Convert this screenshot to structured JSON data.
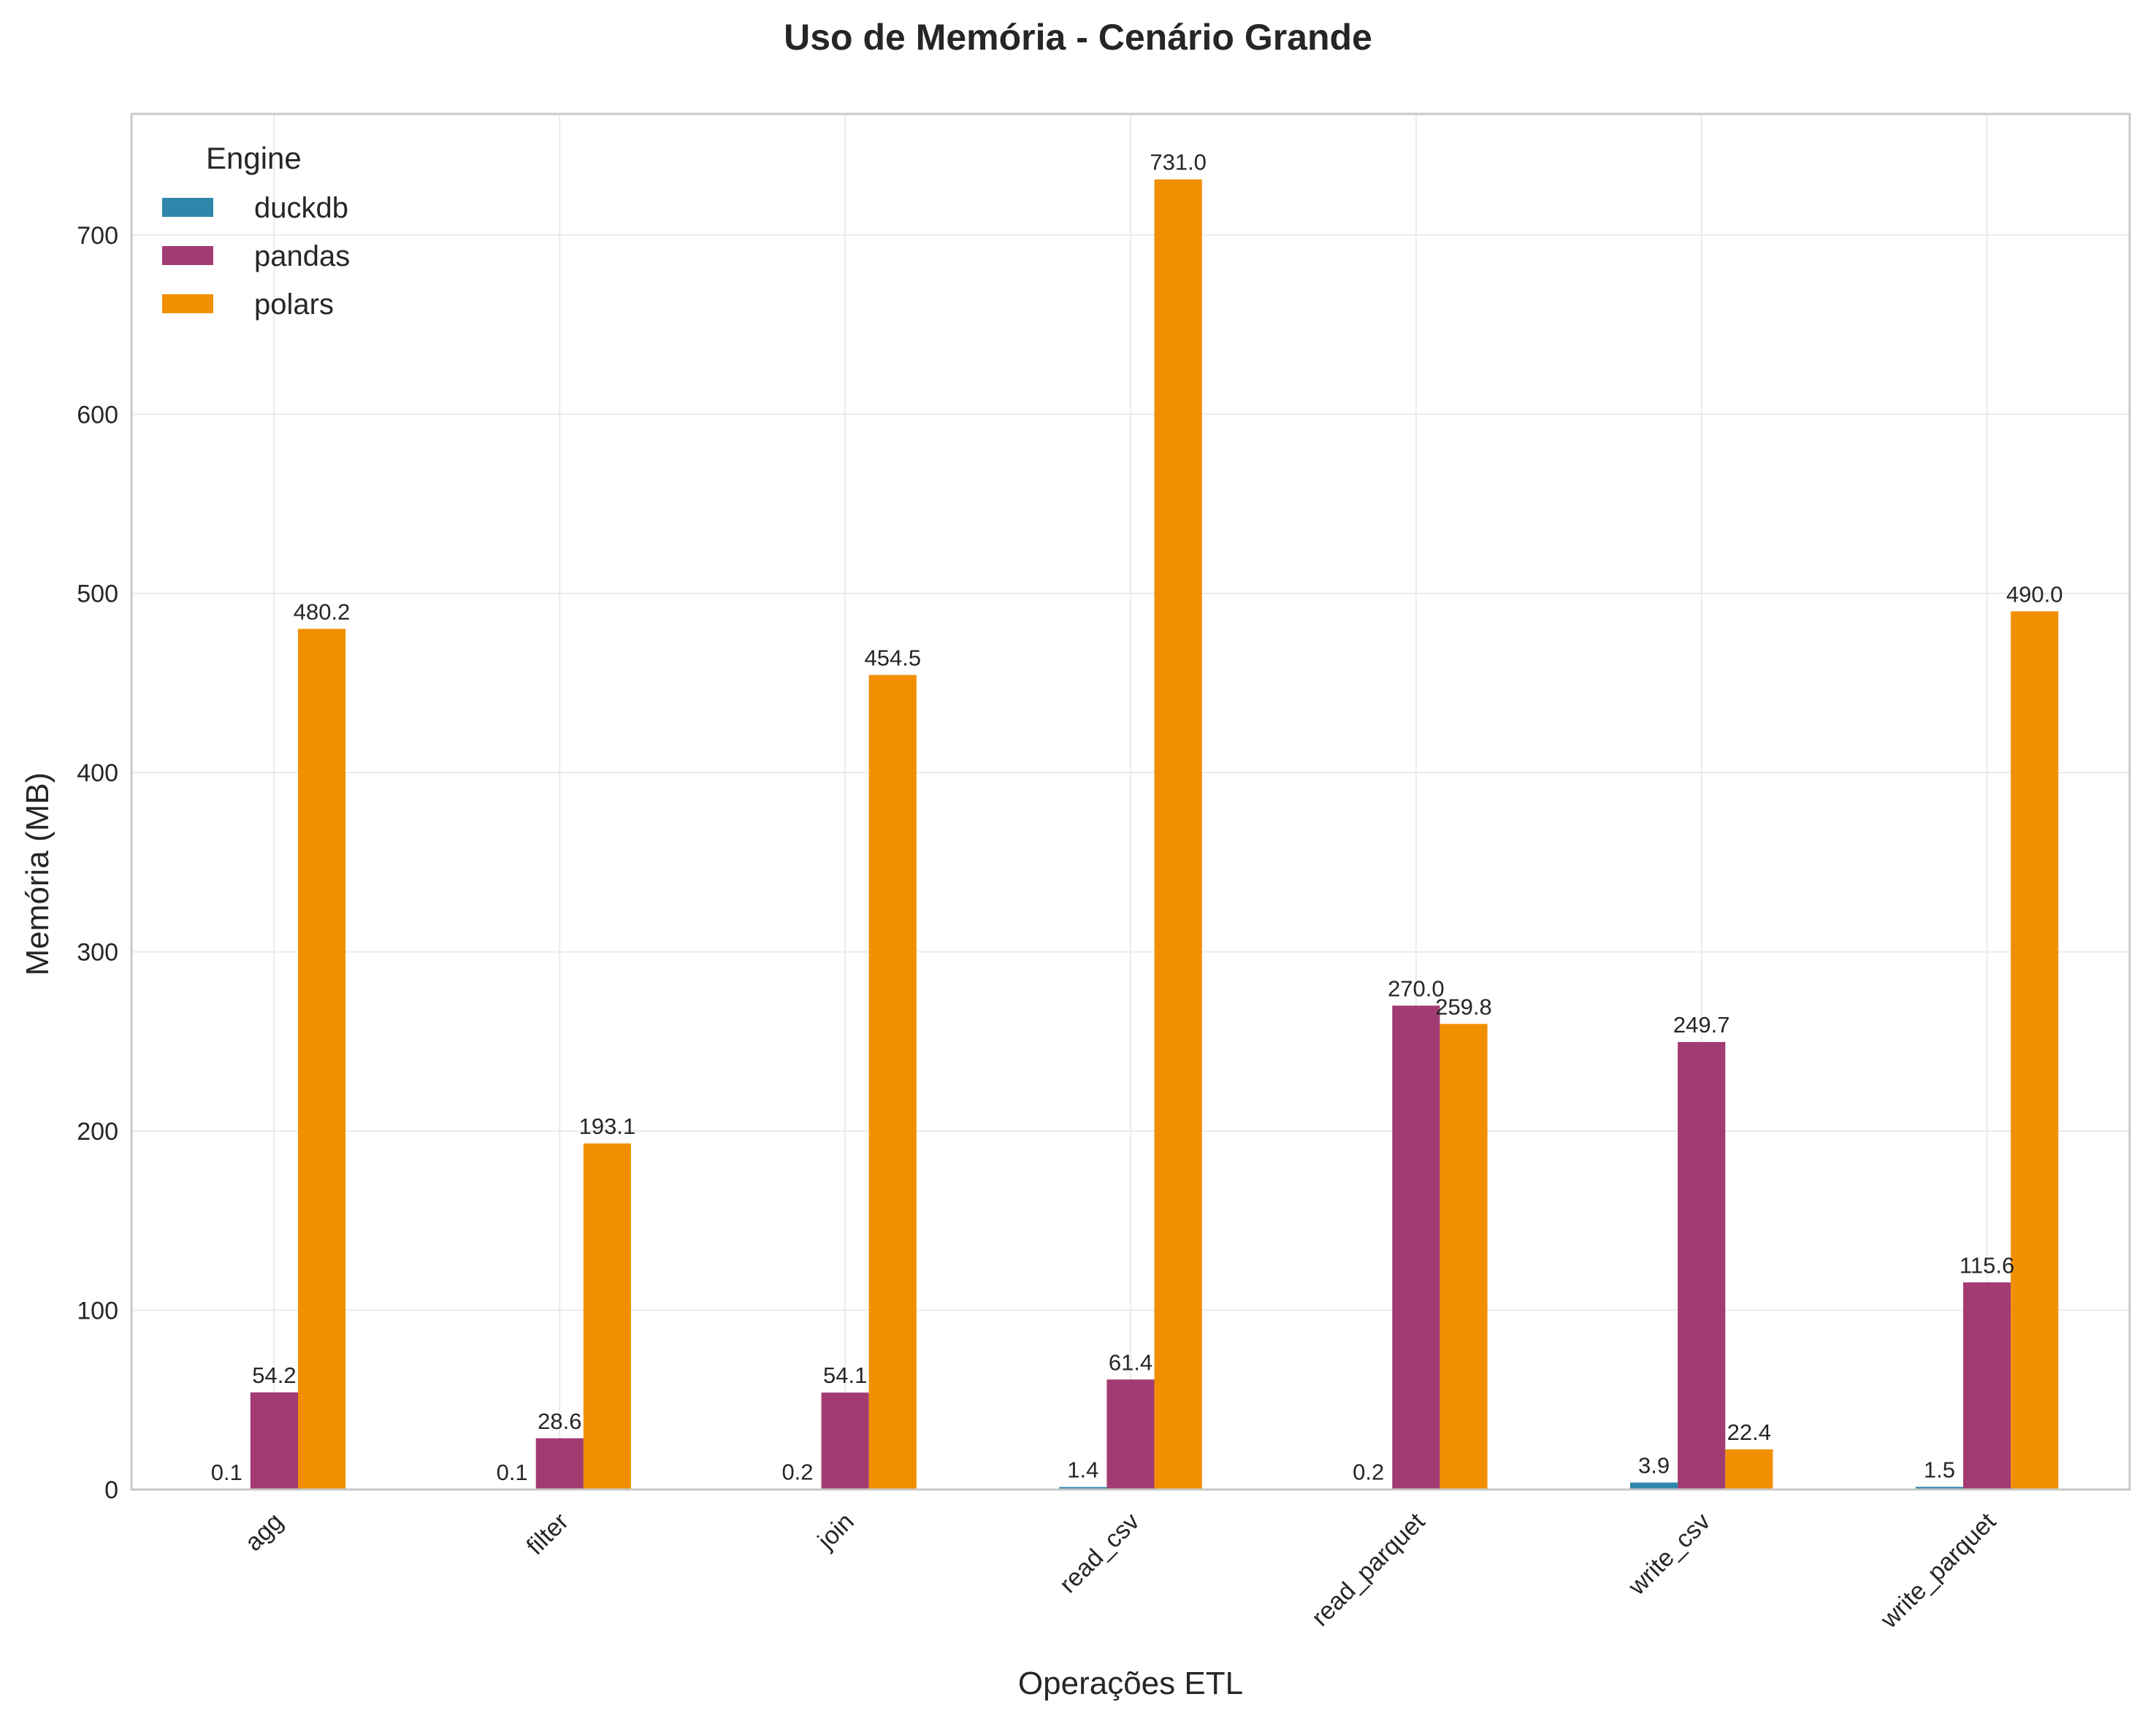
{
  "chart_data": {
    "type": "bar",
    "title": "Uso de Memória - Cenário Grande",
    "xlabel": "Operações ETL",
    "ylabel": "Memória (MB)",
    "categories": [
      "agg",
      "filter",
      "join",
      "read_csv",
      "read_parquet",
      "write_csv",
      "write_parquet"
    ],
    "series": [
      {
        "name": "duckdb",
        "color": "#2e86ab",
        "values": [
          0.1,
          0.1,
          0.2,
          1.4,
          0.2,
          3.9,
          1.5
        ],
        "labels": [
          "0.1",
          "0.1",
          "0.2",
          "1.4",
          "0.2",
          "3.9",
          "1.5"
        ]
      },
      {
        "name": "pandas",
        "color": "#a23b72",
        "values": [
          54.2,
          28.6,
          54.1,
          61.4,
          270.0,
          249.7,
          115.6
        ],
        "labels": [
          "54.2",
          "28.6",
          "54.1",
          "61.4",
          "270.0",
          "249.7",
          "115.6"
        ]
      },
      {
        "name": "polars",
        "color": "#f18f01",
        "values": [
          480.2,
          193.1,
          454.5,
          731.0,
          259.8,
          22.4,
          490.0
        ],
        "labels": [
          "480.2",
          "193.1",
          "454.5",
          "731.0",
          "259.8",
          "22.4",
          "490.0"
        ]
      }
    ],
    "ylim": [
      0,
      767.55
    ],
    "yticks": [
      0,
      100,
      200,
      300,
      400,
      500,
      600,
      700
    ],
    "grid": true,
    "legend": {
      "title": "Engine",
      "position": "top-left"
    }
  }
}
